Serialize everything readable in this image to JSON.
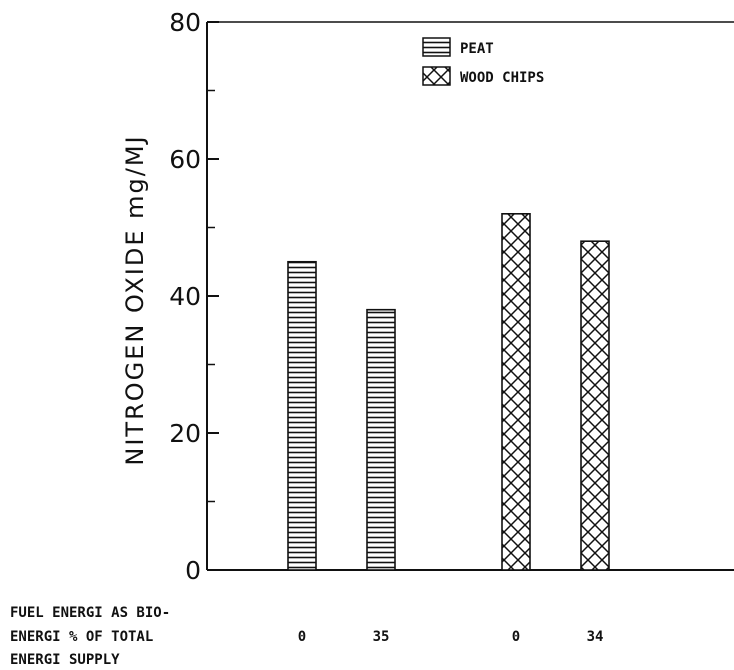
{
  "chart_data": {
    "type": "bar",
    "ylabel": "NITROGEN OXIDE mg/MJ",
    "xlabel_lines": [
      "FUEL ENERGI AS BIO-",
      "ENERGI % OF TOTAL",
      "ENERGI SUPPLY"
    ],
    "ylim": [
      0,
      80
    ],
    "yticks": [
      0,
      20,
      40,
      60,
      80
    ],
    "categories": [
      "0",
      "35",
      "0",
      "34"
    ],
    "series": [
      {
        "name": "PEAT",
        "pattern": "horizontal-lines",
        "values": [
          45,
          38,
          null,
          null
        ]
      },
      {
        "name": "WOOD CHIPS",
        "pattern": "crosshatch",
        "values": [
          null,
          null,
          52,
          48
        ]
      }
    ],
    "legend_position": "top-center",
    "grid": false
  }
}
